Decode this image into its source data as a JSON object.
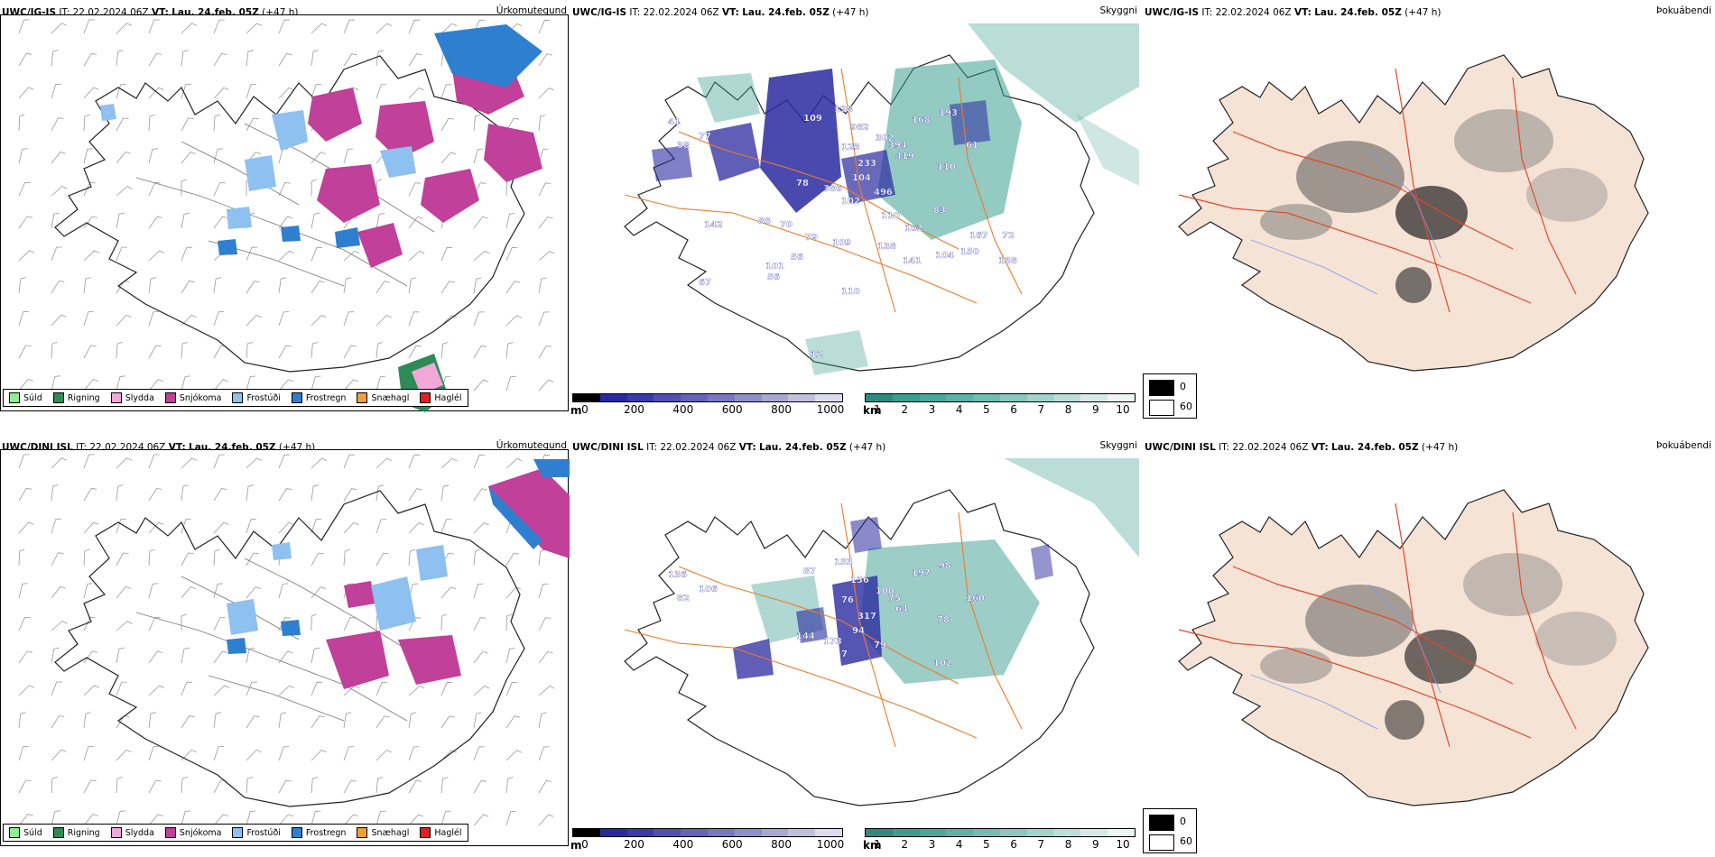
{
  "rows": [
    {
      "model": "UWC/IG-IS",
      "it_label": "IT:",
      "it_value": "22.02.2024 06Z",
      "vt_label": "VT:",
      "vt_value": "Lau. 24.feb. 05Z",
      "lead": "(+47 h)",
      "titles": [
        "Úrkomutegund",
        "Skyggni",
        "Þokuábendi"
      ],
      "ceiling_labels": [
        "41",
        "77",
        "38",
        "109",
        "198",
        "982",
        "302",
        "168",
        "193",
        "123",
        "394",
        "61",
        "233",
        "419",
        "104",
        "110",
        "386",
        "78",
        "102",
        "496",
        "83",
        "110",
        "162",
        "142",
        "88",
        "70",
        "79",
        "167",
        "109",
        "138",
        "150",
        "56",
        "141",
        "104",
        "138",
        "101",
        "56",
        "67",
        "110",
        "72",
        "12"
      ]
    },
    {
      "model": "UWC/DINI ISL",
      "it_label": "IT:",
      "it_value": "22.02.2024 06Z",
      "vt_label": "VT:",
      "vt_value": "Lau. 24.feb. 05Z",
      "lead": "(+47 h)",
      "titles": [
        "Úrkomutegund",
        "Skyggni",
        "Þokuábendi"
      ],
      "ceiling_labels": [
        "136",
        "106",
        "82",
        "87",
        "153",
        "136",
        "100",
        "197",
        "98",
        "76",
        "75",
        "160",
        "317",
        "64",
        "94",
        "78",
        "173",
        "144",
        "7",
        "79",
        "102"
      ]
    }
  ],
  "precip_legend": [
    {
      "label": "Súld",
      "color": "#90ee90"
    },
    {
      "label": "Rigning",
      "color": "#2e8b57"
    },
    {
      "label": "Slydda",
      "color": "#f4a6d7"
    },
    {
      "label": "Snjókoma",
      "color": "#c0409a"
    },
    {
      "label": "Frostúði",
      "color": "#8ec0f0"
    },
    {
      "label": "Frostregn",
      "color": "#2f7fd0"
    },
    {
      "label": "Snæhagl",
      "color": "#f0a030"
    },
    {
      "label": "Haglél",
      "color": "#e02020"
    }
  ],
  "ceiling_bar": {
    "unit": "m",
    "ticks": [
      "0",
      "200",
      "400",
      "600",
      "800",
      "1000"
    ]
  },
  "visibility_bar": {
    "unit": "km",
    "ticks": [
      "1",
      "2",
      "3",
      "4",
      "5",
      "6",
      "7",
      "8",
      "9",
      "10"
    ]
  },
  "fog_legend": {
    "high": "0",
    "low": "60"
  },
  "colors": {
    "snow": "#c0409a",
    "frost_drizzle": "#8ec0f0",
    "freezing_rain": "#2f7fd0",
    "rain": "#2e8b57",
    "sleet": "#f4a6d7",
    "ceiling_dark": "#2a2aa0",
    "teal": "#3a9e90",
    "road": "#ee7a2a",
    "land": "#f5e3d6"
  }
}
